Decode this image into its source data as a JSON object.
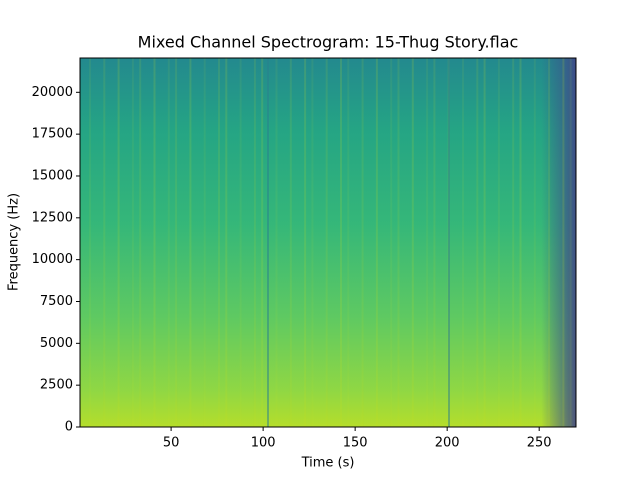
{
  "chart_data": {
    "type": "spectrogram",
    "title": "Mixed Channel Spectrogram: 15-Thug Story.flac",
    "xlabel": "Time (s)",
    "ylabel": "Frequency (Hz)",
    "xlim": [
      0.5,
      270
    ],
    "xticks": [
      50,
      100,
      150,
      200,
      250
    ],
    "ylim": [
      0,
      22050
    ],
    "yticks": [
      0,
      2500,
      5000,
      7500,
      10000,
      12500,
      15000,
      17500,
      20000
    ],
    "colormap": "viridis"
  }
}
